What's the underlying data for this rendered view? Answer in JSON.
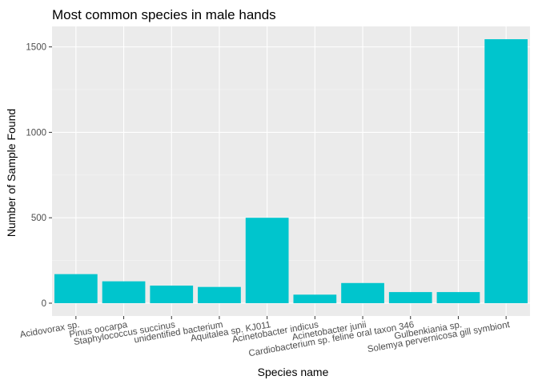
{
  "chart_data": {
    "type": "bar",
    "title": "Most common species in male hands",
    "xlabel": "Species name",
    "ylabel": "Number of Sample Found",
    "categories": [
      "Acidovorax sp.",
      "Pinus oocarpa",
      "Staphylococcus succinus",
      "unidentified bacterium",
      "Aquitalea sp. KJ011",
      "Acinetobacter indicus",
      "Acinetobacter junii",
      "Cardiobacterium sp. feline oral taxon 346",
      "Gulbenkiania sp.",
      "Solemya pervernicosa gill symbiont"
    ],
    "values": [
      170,
      128,
      103,
      95,
      500,
      50,
      118,
      65,
      65,
      1545
    ],
    "ylim": [
      -75,
      1620
    ],
    "yticks": [
      0,
      500,
      1000,
      1500
    ],
    "ytick_labels": [
      "0",
      "500",
      "1000",
      "1500"
    ],
    "grid": true,
    "legend": "none"
  },
  "colors": {
    "bar": "#00c5cd",
    "panel_background": "#ebebeb",
    "grid_major": "#ffffff",
    "grid_minor": "#f5f5f5",
    "text": "#000000",
    "tick_text": "#4d4d4d"
  }
}
